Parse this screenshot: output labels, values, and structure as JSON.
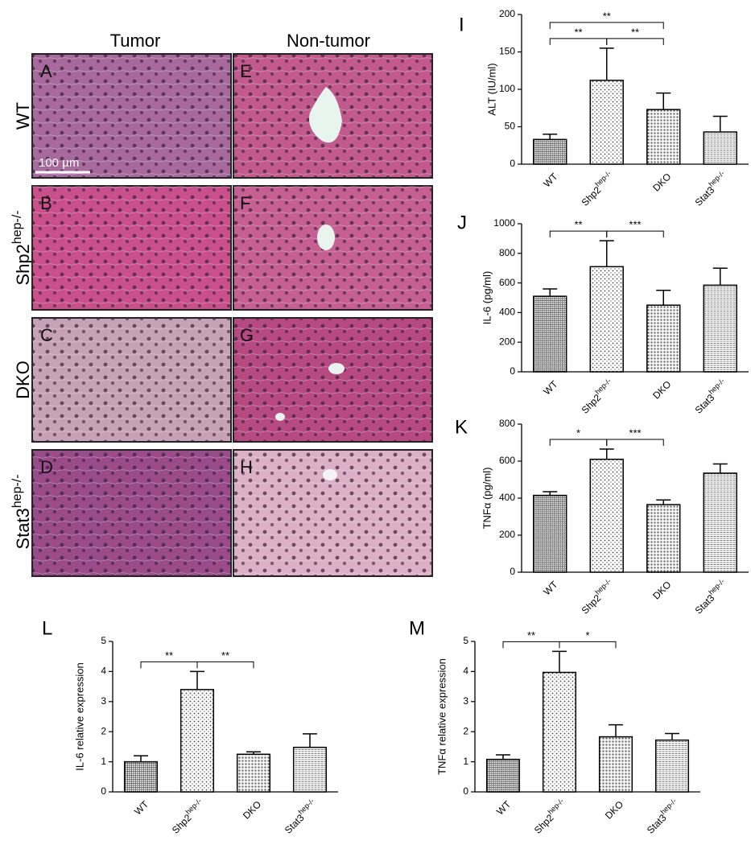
{
  "histology": {
    "column_titles": [
      "Tumor",
      "Non-tumor"
    ],
    "row_labels": [
      {
        "text": "WT"
      },
      {
        "text": "Shp2",
        "sup": "hep-/-"
      },
      {
        "text": "DKO"
      },
      {
        "text": "Stat3",
        "sup": "hep-/-"
      }
    ],
    "panel_letters": [
      "A",
      "B",
      "C",
      "D",
      "E",
      "F",
      "G",
      "H"
    ],
    "scale_bar": "100 µm"
  },
  "chart_data": [
    {
      "type": "bar",
      "panel": "I",
      "ylabel": "ALT (IU/ml)",
      "categories": [
        "WT",
        "Shp2",
        "DKO",
        "Stat3"
      ],
      "category_superscripts": [
        null,
        "hep-/-",
        null,
        "hep-/-"
      ],
      "values": [
        33,
        112,
        73,
        43
      ],
      "errors": [
        7,
        43,
        22,
        21
      ],
      "ylim": [
        0,
        200
      ],
      "yticks": [
        0,
        50,
        100,
        150,
        200
      ],
      "brackets": [
        {
          "from": 0,
          "to": 1,
          "label": "**"
        },
        {
          "from": 1,
          "to": 2,
          "label": "**"
        },
        {
          "from": 0,
          "to": 2,
          "label": "**"
        }
      ]
    },
    {
      "type": "bar",
      "panel": "J",
      "ylabel": "IL-6 (pg/ml)",
      "categories": [
        "WT",
        "Shp2",
        "DKO",
        "Stat3"
      ],
      "category_superscripts": [
        null,
        "hep-/-",
        null,
        "hep-/-"
      ],
      "values": [
        510,
        710,
        450,
        585
      ],
      "errors": [
        50,
        175,
        100,
        115
      ],
      "ylim": [
        0,
        1000
      ],
      "yticks": [
        0,
        200,
        400,
        600,
        800,
        1000
      ],
      "brackets": [
        {
          "from": 0,
          "to": 1,
          "label": "**"
        },
        {
          "from": 1,
          "to": 2,
          "label": "***"
        }
      ]
    },
    {
      "type": "bar",
      "panel": "K",
      "ylabel": "TNFα (pg/ml)",
      "categories": [
        "WT",
        "Shp2",
        "DKO",
        "Stat3"
      ],
      "category_superscripts": [
        null,
        "hep-/-",
        null,
        "hep-/-"
      ],
      "values": [
        415,
        610,
        365,
        535
      ],
      "errors": [
        20,
        55,
        25,
        50
      ],
      "ylim": [
        0,
        800
      ],
      "yticks": [
        0,
        200,
        400,
        600,
        800
      ],
      "brackets": [
        {
          "from": 0,
          "to": 1,
          "label": "*"
        },
        {
          "from": 1,
          "to": 2,
          "label": "***"
        }
      ]
    },
    {
      "type": "bar",
      "panel": "L",
      "ylabel": "IL-6 relative expression",
      "categories": [
        "WT",
        "Shp2",
        "DKO",
        "Stat3"
      ],
      "category_superscripts": [
        null,
        "hep-/-",
        null,
        "hep-/-"
      ],
      "values": [
        1.0,
        3.4,
        1.25,
        1.48
      ],
      "errors": [
        0.2,
        0.6,
        0.08,
        0.45
      ],
      "ylim": [
        0,
        5
      ],
      "yticks": [
        0,
        1,
        2,
        3,
        4,
        5
      ],
      "brackets": [
        {
          "from": 0,
          "to": 1,
          "label": "**"
        },
        {
          "from": 1,
          "to": 2,
          "label": "**"
        }
      ]
    },
    {
      "type": "bar",
      "panel": "M",
      "ylabel": "TNFα relative expression",
      "categories": [
        "WT",
        "Shp2",
        "DKO",
        "Stat3"
      ],
      "category_superscripts": [
        null,
        "hep-/-",
        null,
        "hep-/-"
      ],
      "values": [
        1.08,
        3.97,
        1.83,
        1.72
      ],
      "errors": [
        0.15,
        0.7,
        0.4,
        0.22
      ],
      "ylim": [
        0,
        5
      ],
      "yticks": [
        0,
        1,
        2,
        3,
        4,
        5
      ],
      "brackets": [
        {
          "from": 0,
          "to": 1,
          "label": "**"
        },
        {
          "from": 1,
          "to": 2,
          "label": "*"
        }
      ]
    }
  ]
}
